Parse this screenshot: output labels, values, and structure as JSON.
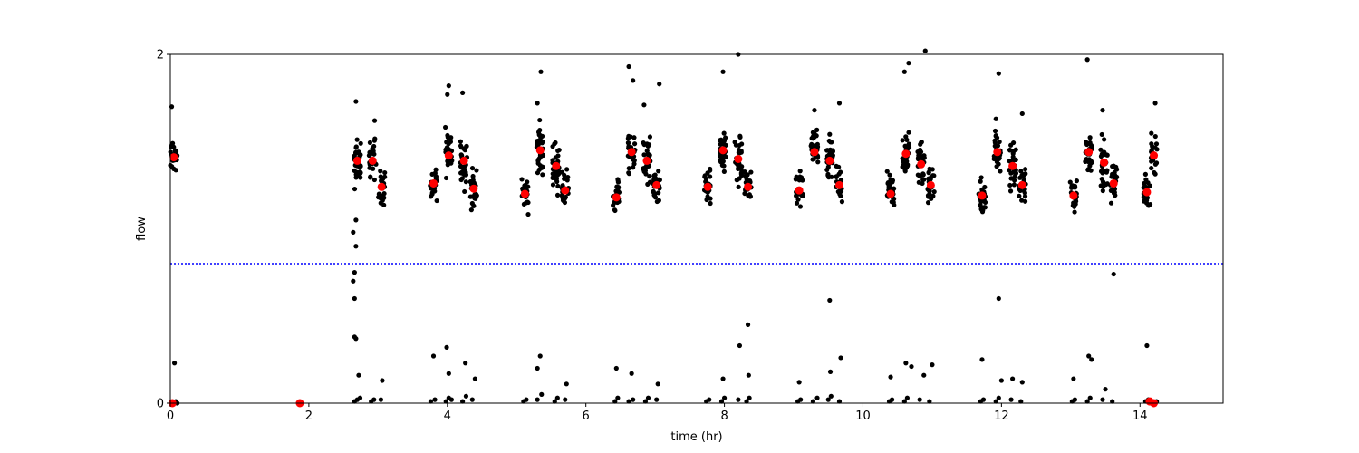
{
  "chart_data": {
    "type": "scatter",
    "xlabel": "time (hr)",
    "ylabel": "flow",
    "xlim": [
      0,
      15.2
    ],
    "ylim": [
      0,
      2
    ],
    "xticks": [
      0,
      2,
      4,
      6,
      8,
      10,
      12,
      14
    ],
    "yticks": [
      0,
      2
    ],
    "grid": false,
    "reference_line": {
      "y": 0.8,
      "color": "#0000ff",
      "style": "dotted"
    },
    "colors": {
      "raw": "#000000",
      "mean": "#ff0000"
    },
    "clusters": [
      {
        "x": 0.05,
        "center": 1.41,
        "spread": 0.07,
        "n": 28
      },
      {
        "x": 2.7,
        "center": 1.38,
        "spread": 0.09,
        "n": 40
      },
      {
        "x": 2.92,
        "center": 1.4,
        "spread": 0.08,
        "n": 26
      },
      {
        "x": 3.05,
        "center": 1.24,
        "spread": 0.07,
        "n": 24
      },
      {
        "x": 3.8,
        "center": 1.26,
        "spread": 0.07,
        "n": 24
      },
      {
        "x": 4.02,
        "center": 1.42,
        "spread": 0.08,
        "n": 30
      },
      {
        "x": 4.24,
        "center": 1.39,
        "spread": 0.09,
        "n": 30
      },
      {
        "x": 4.38,
        "center": 1.23,
        "spread": 0.07,
        "n": 24
      },
      {
        "x": 5.12,
        "center": 1.2,
        "spread": 0.07,
        "n": 26
      },
      {
        "x": 5.34,
        "center": 1.45,
        "spread": 0.09,
        "n": 34
      },
      {
        "x": 5.57,
        "center": 1.36,
        "spread": 0.09,
        "n": 32
      },
      {
        "x": 5.7,
        "center": 1.22,
        "spread": 0.07,
        "n": 24
      },
      {
        "x": 6.44,
        "center": 1.18,
        "spread": 0.07,
        "n": 26
      },
      {
        "x": 6.66,
        "center": 1.44,
        "spread": 0.08,
        "n": 30
      },
      {
        "x": 6.88,
        "center": 1.39,
        "spread": 0.09,
        "n": 30
      },
      {
        "x": 7.02,
        "center": 1.25,
        "spread": 0.07,
        "n": 24
      },
      {
        "x": 7.76,
        "center": 1.24,
        "spread": 0.07,
        "n": 26
      },
      {
        "x": 7.98,
        "center": 1.45,
        "spread": 0.08,
        "n": 32
      },
      {
        "x": 8.2,
        "center": 1.4,
        "spread": 0.09,
        "n": 30
      },
      {
        "x": 8.34,
        "center": 1.24,
        "spread": 0.07,
        "n": 24
      },
      {
        "x": 9.08,
        "center": 1.22,
        "spread": 0.07,
        "n": 24
      },
      {
        "x": 9.3,
        "center": 1.44,
        "spread": 0.08,
        "n": 30
      },
      {
        "x": 9.52,
        "center": 1.39,
        "spread": 0.09,
        "n": 30
      },
      {
        "x": 9.66,
        "center": 1.25,
        "spread": 0.07,
        "n": 24
      },
      {
        "x": 10.4,
        "center": 1.2,
        "spread": 0.07,
        "n": 26
      },
      {
        "x": 10.62,
        "center": 1.43,
        "spread": 0.08,
        "n": 32
      },
      {
        "x": 10.84,
        "center": 1.37,
        "spread": 0.09,
        "n": 30
      },
      {
        "x": 10.98,
        "center": 1.25,
        "spread": 0.07,
        "n": 24
      },
      {
        "x": 11.72,
        "center": 1.19,
        "spread": 0.07,
        "n": 26
      },
      {
        "x": 11.94,
        "center": 1.44,
        "spread": 0.08,
        "n": 30
      },
      {
        "x": 12.16,
        "center": 1.36,
        "spread": 0.09,
        "n": 30
      },
      {
        "x": 12.3,
        "center": 1.25,
        "spread": 0.07,
        "n": 24
      },
      {
        "x": 13.04,
        "center": 1.19,
        "spread": 0.07,
        "n": 26
      },
      {
        "x": 13.26,
        "center": 1.44,
        "spread": 0.08,
        "n": 30
      },
      {
        "x": 13.48,
        "center": 1.38,
        "spread": 0.09,
        "n": 30
      },
      {
        "x": 13.62,
        "center": 1.26,
        "spread": 0.07,
        "n": 24
      },
      {
        "x": 14.1,
        "center": 1.21,
        "spread": 0.07,
        "n": 24
      },
      {
        "x": 14.2,
        "center": 1.42,
        "spread": 0.07,
        "n": 22
      }
    ],
    "near_zero_points": [
      [
        0.05,
        0.0
      ],
      [
        0.08,
        0.01
      ],
      [
        0.1,
        0.0
      ],
      [
        0.06,
        0.23
      ],
      [
        2.66,
        0.01
      ],
      [
        2.7,
        0.02
      ],
      [
        2.74,
        0.03
      ],
      [
        2.9,
        0.01
      ],
      [
        2.94,
        0.02
      ],
      [
        3.04,
        0.02
      ],
      [
        2.72,
        0.16
      ],
      [
        3.06,
        0.13
      ],
      [
        3.76,
        0.01
      ],
      [
        3.82,
        0.02
      ],
      [
        3.98,
        0.01
      ],
      [
        4.02,
        0.03
      ],
      [
        4.06,
        0.02
      ],
      [
        4.22,
        0.01
      ],
      [
        4.27,
        0.04
      ],
      [
        4.36,
        0.02
      ],
      [
        3.8,
        0.27
      ],
      [
        3.99,
        0.32
      ],
      [
        4.26,
        0.23
      ],
      [
        4.02,
        0.17
      ],
      [
        4.4,
        0.14
      ],
      [
        5.1,
        0.01
      ],
      [
        5.14,
        0.02
      ],
      [
        5.3,
        0.02
      ],
      [
        5.36,
        0.05
      ],
      [
        5.55,
        0.01
      ],
      [
        5.59,
        0.03
      ],
      [
        5.7,
        0.02
      ],
      [
        5.34,
        0.27
      ],
      [
        5.3,
        0.2
      ],
      [
        5.72,
        0.11
      ],
      [
        6.42,
        0.01
      ],
      [
        6.46,
        0.03
      ],
      [
        6.62,
        0.01
      ],
      [
        6.68,
        0.02
      ],
      [
        6.86,
        0.01
      ],
      [
        6.9,
        0.03
      ],
      [
        7.02,
        0.02
      ],
      [
        6.44,
        0.2
      ],
      [
        6.66,
        0.17
      ],
      [
        7.04,
        0.11
      ],
      [
        7.74,
        0.01
      ],
      [
        7.78,
        0.02
      ],
      [
        7.96,
        0.01
      ],
      [
        8.0,
        0.03
      ],
      [
        8.2,
        0.02
      ],
      [
        8.32,
        0.01
      ],
      [
        8.36,
        0.03
      ],
      [
        7.98,
        0.14
      ],
      [
        8.22,
        0.33
      ],
      [
        8.34,
        0.45
      ],
      [
        8.35,
        0.16
      ],
      [
        9.06,
        0.01
      ],
      [
        9.1,
        0.02
      ],
      [
        9.28,
        0.01
      ],
      [
        9.34,
        0.03
      ],
      [
        9.5,
        0.02
      ],
      [
        9.54,
        0.04
      ],
      [
        9.66,
        0.01
      ],
      [
        9.08,
        0.12
      ],
      [
        9.53,
        0.18
      ],
      [
        9.68,
        0.26
      ],
      [
        9.52,
        0.59
      ],
      [
        10.38,
        0.01
      ],
      [
        10.42,
        0.02
      ],
      [
        10.6,
        0.01
      ],
      [
        10.64,
        0.03
      ],
      [
        10.82,
        0.02
      ],
      [
        10.96,
        0.01
      ],
      [
        10.4,
        0.15
      ],
      [
        10.62,
        0.23
      ],
      [
        10.7,
        0.21
      ],
      [
        10.88,
        0.16
      ],
      [
        11.0,
        0.22
      ],
      [
        11.7,
        0.01
      ],
      [
        11.74,
        0.02
      ],
      [
        11.92,
        0.01
      ],
      [
        11.96,
        0.03
      ],
      [
        12.14,
        0.02
      ],
      [
        12.28,
        0.01
      ],
      [
        11.72,
        0.25
      ],
      [
        11.96,
        0.6
      ],
      [
        12.0,
        0.13
      ],
      [
        12.16,
        0.14
      ],
      [
        12.3,
        0.12
      ],
      [
        13.02,
        0.01
      ],
      [
        13.06,
        0.02
      ],
      [
        13.24,
        0.01
      ],
      [
        13.28,
        0.03
      ],
      [
        13.46,
        0.02
      ],
      [
        13.6,
        0.01
      ],
      [
        13.04,
        0.14
      ],
      [
        13.26,
        0.27
      ],
      [
        13.3,
        0.25
      ],
      [
        13.5,
        0.08
      ],
      [
        14.08,
        0.01
      ],
      [
        14.12,
        0.02
      ],
      [
        14.16,
        0.01
      ],
      [
        14.2,
        0.0
      ],
      [
        14.24,
        0.01
      ],
      [
        14.1,
        0.33
      ]
    ],
    "outlier_points": [
      [
        0.02,
        1.7
      ],
      [
        2.68,
        1.73
      ],
      [
        2.95,
        1.62
      ],
      [
        4.0,
        1.77
      ],
      [
        4.02,
        1.82
      ],
      [
        4.22,
        1.78
      ],
      [
        5.35,
        1.9
      ],
      [
        5.3,
        1.72
      ],
      [
        6.62,
        1.93
      ],
      [
        6.68,
        1.85
      ],
      [
        6.84,
        1.71
      ],
      [
        7.06,
        1.83
      ],
      [
        7.98,
        1.9
      ],
      [
        8.2,
        2.0
      ],
      [
        9.3,
        1.68
      ],
      [
        9.66,
        1.72
      ],
      [
        10.6,
        1.9
      ],
      [
        10.66,
        1.95
      ],
      [
        10.9,
        2.02
      ],
      [
        11.96,
        1.89
      ],
      [
        11.92,
        1.63
      ],
      [
        12.3,
        1.66
      ],
      [
        13.24,
        1.97
      ],
      [
        13.46,
        1.68
      ],
      [
        14.22,
        1.72
      ],
      [
        2.68,
        1.05
      ],
      [
        2.64,
        0.98
      ],
      [
        2.68,
        0.9
      ],
      [
        2.66,
        0.75
      ],
      [
        2.64,
        0.7
      ],
      [
        2.66,
        0.6
      ],
      [
        2.68,
        0.37
      ],
      [
        2.66,
        0.38
      ],
      [
        13.62,
        0.74
      ]
    ],
    "mean_points": [
      [
        0.05,
        1.41
      ],
      [
        0.03,
        0.0
      ],
      [
        1.87,
        0.0
      ],
      [
        2.7,
        1.39
      ],
      [
        2.92,
        1.39
      ],
      [
        3.05,
        1.24
      ],
      [
        3.8,
        1.26
      ],
      [
        4.02,
        1.42
      ],
      [
        4.24,
        1.39
      ],
      [
        4.38,
        1.23
      ],
      [
        5.12,
        1.2
      ],
      [
        5.34,
        1.45
      ],
      [
        5.57,
        1.36
      ],
      [
        5.7,
        1.22
      ],
      [
        6.44,
        1.18
      ],
      [
        6.66,
        1.44
      ],
      [
        6.88,
        1.39
      ],
      [
        7.02,
        1.25
      ],
      [
        7.76,
        1.24
      ],
      [
        7.98,
        1.45
      ],
      [
        8.2,
        1.4
      ],
      [
        8.34,
        1.24
      ],
      [
        9.08,
        1.22
      ],
      [
        9.3,
        1.44
      ],
      [
        9.52,
        1.39
      ],
      [
        9.66,
        1.25
      ],
      [
        10.4,
        1.2
      ],
      [
        10.62,
        1.43
      ],
      [
        10.84,
        1.37
      ],
      [
        10.98,
        1.25
      ],
      [
        11.72,
        1.19
      ],
      [
        11.94,
        1.44
      ],
      [
        12.16,
        1.36
      ],
      [
        12.3,
        1.25
      ],
      [
        13.04,
        1.19
      ],
      [
        13.26,
        1.44
      ],
      [
        13.48,
        1.38
      ],
      [
        13.62,
        1.26
      ],
      [
        14.1,
        1.21
      ],
      [
        14.2,
        1.42
      ],
      [
        14.14,
        0.01
      ],
      [
        14.2,
        0.0
      ]
    ]
  }
}
